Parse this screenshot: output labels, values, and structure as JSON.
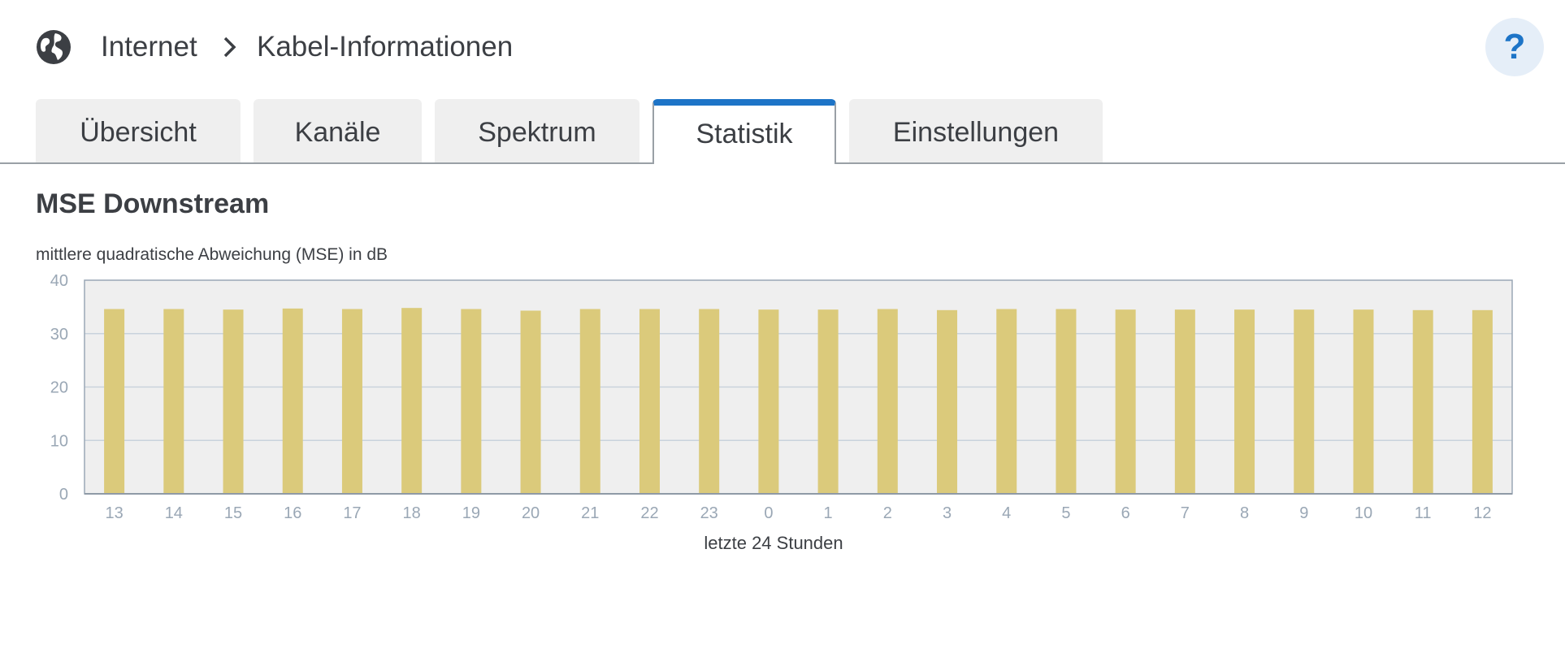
{
  "header": {
    "icon": "globe-icon",
    "breadcrumb": [
      "Internet",
      "Kabel-Informationen"
    ],
    "help_label": "?"
  },
  "tabs": [
    {
      "label": "Übersicht",
      "active": false
    },
    {
      "label": "Kanäle",
      "active": false
    },
    {
      "label": "Spektrum",
      "active": false
    },
    {
      "label": "Statistik",
      "active": true
    },
    {
      "label": "Einstellungen",
      "active": false
    }
  ],
  "colors": {
    "accent": "#1d74c7",
    "bar": "#dbca7b",
    "plot_background": "#efefef",
    "grid": "#c9d3dc",
    "tick_text": "#9aa7b5"
  },
  "chart_data": {
    "type": "bar",
    "title": "MSE Downstream",
    "ylabel": "mittlere quadratische Abweichung (MSE) in dB",
    "xlabel": "letzte 24 Stunden",
    "ylim": [
      0,
      40
    ],
    "yticks": [
      0,
      10,
      20,
      30,
      40
    ],
    "grid": true,
    "categories": [
      "13",
      "14",
      "15",
      "16",
      "17",
      "18",
      "19",
      "20",
      "21",
      "22",
      "23",
      "0",
      "1",
      "2",
      "3",
      "4",
      "5",
      "6",
      "7",
      "8",
      "9",
      "10",
      "11",
      "12"
    ],
    "values": [
      34.6,
      34.6,
      34.5,
      34.7,
      34.6,
      34.8,
      34.6,
      34.3,
      34.6,
      34.6,
      34.6,
      34.5,
      34.5,
      34.6,
      34.4,
      34.6,
      34.6,
      34.5,
      34.5,
      34.5,
      34.5,
      34.5,
      34.4,
      34.4
    ]
  }
}
